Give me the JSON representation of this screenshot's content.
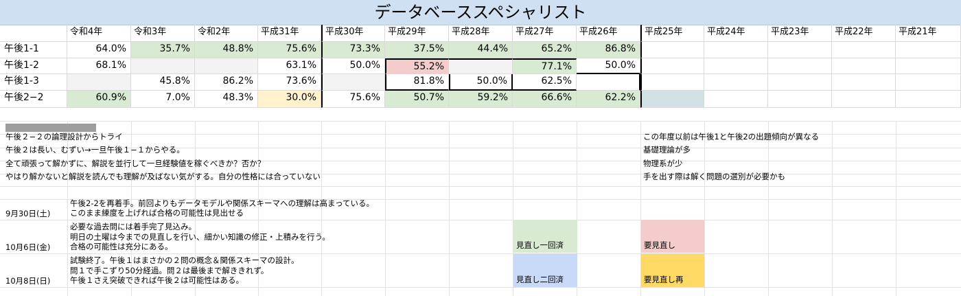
{
  "title": "データベーススペシャリスト",
  "years": [
    "令和4年",
    "令和3年",
    "令和2年",
    "平成31年",
    "平成30年",
    "平成29年",
    "平成28年",
    "平成27年",
    "平成26年",
    "平成25年",
    "平成24年",
    "平成23年",
    "平成22年",
    "平成21年"
  ],
  "rows": [
    {
      "label": "午後1-1",
      "values": [
        "64.0%",
        "35.7%",
        "48.8%",
        "75.6%",
        "73.3%",
        "37.5%",
        "44.4%",
        "65.2%",
        "86.8%",
        "",
        "",
        "",
        "",
        ""
      ]
    },
    {
      "label": "午後1-2",
      "values": [
        "68.1%",
        "",
        "",
        "63.1%",
        "50.0%",
        "55.2%",
        "",
        "77.1%",
        "50.0%",
        "",
        "",
        "",
        "",
        ""
      ]
    },
    {
      "label": "午後1-3",
      "values": [
        "",
        "45.8%",
        "86.2%",
        "73.6%",
        "",
        "81.8%",
        "50.0%",
        "62.5%",
        "",
        "",
        "",
        "",
        "",
        ""
      ]
    },
    {
      "label": "午後2−2",
      "values": [
        "60.9%",
        "7.0%",
        "48.3%",
        "30.0%",
        "75.6%",
        "50.7%",
        "59.2%",
        "66.6%",
        "62.2%",
        "",
        "",
        "",
        "",
        ""
      ]
    }
  ],
  "notes_left": [
    "午後２−２の論理設計からトライ",
    "午後２は長い、むずい→一旦午後１−１からやる。",
    "全て頑張って解かずに、解説を並行して一旦経験値を稼ぐべきか？否か？",
    "やはり解かないと解説を読んでも理解が及ばない気がする。自分の性格には合っていない"
  ],
  "notes_right": [
    "この年度以前は午後1と午後2の出題傾向が異なる",
    "基礎理論が多",
    "物理系が少",
    "手を出す際は解く問題の選別が必要かも"
  ],
  "log": [
    {
      "date": "9月30日(土)",
      "lines": [
        "午後2-2を再着手。前回よりもデータモデルや関係スキーマへの理解は高まっている。",
        "このまま練度を上げれば合格の可能性は見出せる"
      ]
    },
    {
      "date": "10月6日(金)",
      "lines": [
        "必要な過去問には着手完了見込み。",
        "明日の土曜は今までの見直しを行い、細かい知識の修正・上積みを行う。",
        "合格の可能性は充分にある。"
      ]
    },
    {
      "date": "10月8日(日)",
      "lines": [
        "試験終了。午後１はまさかの２問の概念＆関係スキーマの設計。",
        "問１で手こずり50分経過。問２は最後まで解ききれず。",
        "午後１さえ突破できれば午後２は可能性はある。"
      ]
    }
  ],
  "legend": {
    "reviewed_once": "見直し一回済",
    "reviewed_twice": "見直し二回済",
    "needs_review": "要見直し",
    "needs_rereview": "要見直し再"
  },
  "colors": {
    "reviewed_once": "#d9ead3",
    "reviewed_twice": "#c9daf8",
    "needs_review": "#f4cccc",
    "needs_rereview": "#ffd966",
    "title_bg": "#cfe0f2"
  }
}
